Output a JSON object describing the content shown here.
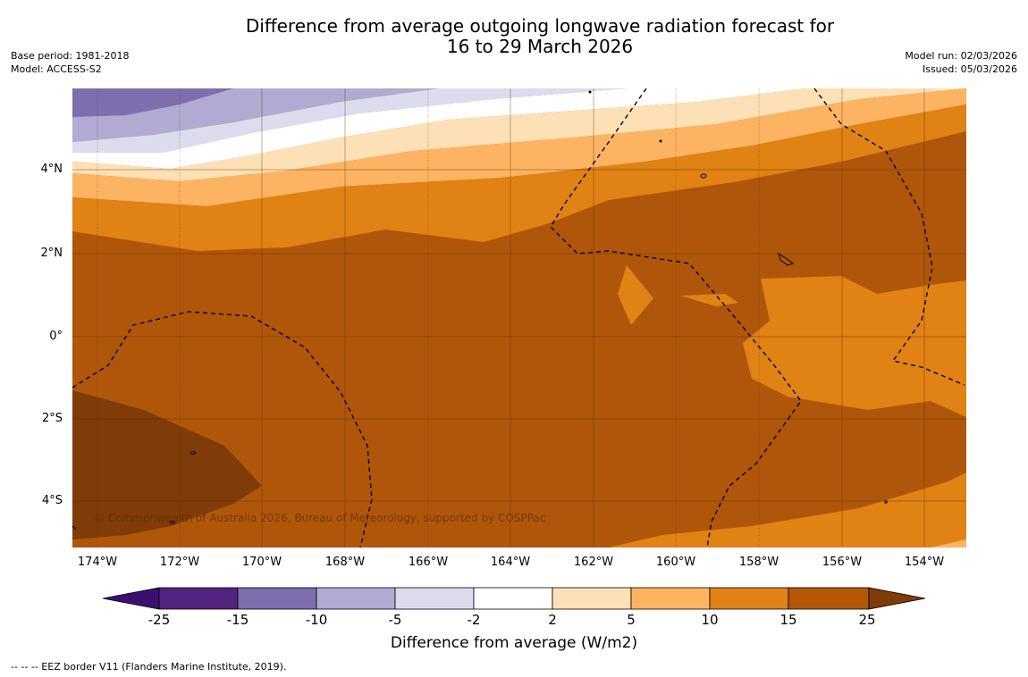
{
  "title_line1": "Difference from average outgoing longwave radiation forecast for",
  "title_line2": "16 to 29 March 2026",
  "base_period": "Base period: 1981-2018",
  "model": "Model: ACCESS-S2",
  "model_run": "Model run: 02/03/2026",
  "issued": "Issued: 05/03/2026",
  "copyright": "© Commonwealth of Australia 2026, Bureau of Meteorology, supported by COSPPac",
  "lat_labels": [
    "4°N",
    "2°N",
    "0°",
    "2°S",
    "4°S"
  ],
  "lon_labels": [
    "174°W",
    "172°W",
    "170°W",
    "168°W",
    "166°W",
    "164°W",
    "162°W",
    "160°W",
    "158°W",
    "156°W",
    "154°W"
  ],
  "colorbar": {
    "title": "Difference from average (W/m2)",
    "ticks": [
      "-25",
      "-15",
      "-10",
      "-5",
      "-2",
      "2",
      "5",
      "10",
      "15",
      "25"
    ],
    "colors": [
      "#3b0f6f",
      "#52237f",
      "#7d6faf",
      "#b1aad3",
      "#dcdcee",
      "#ffffff",
      "#fee0b6",
      "#fdb462",
      "#e08214",
      "#b35806",
      "#7f3b08"
    ]
  },
  "footnote": "--  --  -- EEZ border V11 (Flanders Marine Institute, 2019)."
}
